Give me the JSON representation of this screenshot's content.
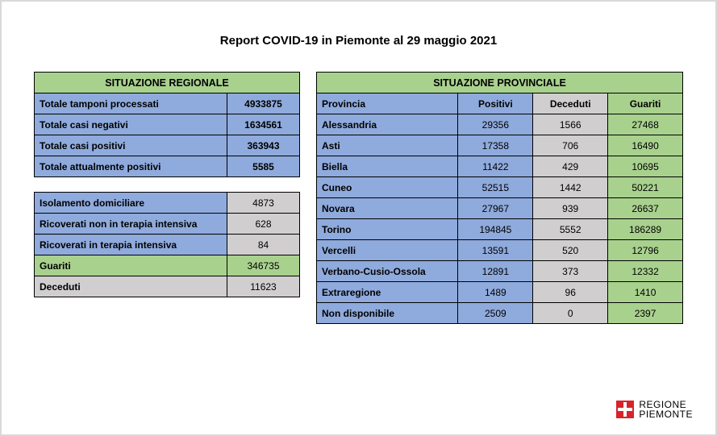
{
  "title": "Report COVID-19 in Piemonte al 29 maggio 2021",
  "regionale": {
    "header": "SITUAZIONE REGIONALE",
    "rows": [
      {
        "label": "Totale tamponi processati",
        "value": "4933875"
      },
      {
        "label": "Totale casi negativi",
        "value": "1634561"
      },
      {
        "label": "Totale casi positivi",
        "value": "363943"
      },
      {
        "label": "Totale attualmente positivi",
        "value": "5585"
      }
    ],
    "breakdown": [
      {
        "label": "Isolamento domiciliare",
        "value": "4873",
        "label_bg": "blue",
        "val_bg": "gray"
      },
      {
        "label": "Ricoverati non in terapia intensiva",
        "value": "628",
        "label_bg": "blue",
        "val_bg": "gray"
      },
      {
        "label": "Ricoverati in terapia intensiva",
        "value": "84",
        "label_bg": "blue",
        "val_bg": "gray"
      },
      {
        "label": "Guariti",
        "value": "346735",
        "label_bg": "green",
        "val_bg": "green"
      },
      {
        "label": "Deceduti",
        "value": "11623",
        "label_bg": "gray",
        "val_bg": "gray"
      }
    ]
  },
  "provinciale": {
    "header": "SITUAZIONE PROVINCIALE",
    "columns": [
      "Provincia",
      "Positivi",
      "Deceduti",
      "Guariti"
    ],
    "rows": [
      {
        "prov": "Alessandria",
        "pos": "29356",
        "dec": "1566",
        "gua": "27468"
      },
      {
        "prov": "Asti",
        "pos": "17358",
        "dec": "706",
        "gua": "16490"
      },
      {
        "prov": "Biella",
        "pos": "11422",
        "dec": "429",
        "gua": "10695"
      },
      {
        "prov": "Cuneo",
        "pos": "52515",
        "dec": "1442",
        "gua": "50221"
      },
      {
        "prov": "Novara",
        "pos": "27967",
        "dec": "939",
        "gua": "26637"
      },
      {
        "prov": "Torino",
        "pos": "194845",
        "dec": "5552",
        "gua": "186289"
      },
      {
        "prov": "Vercelli",
        "pos": "13591",
        "dec": "520",
        "gua": "12796"
      },
      {
        "prov": "Verbano-Cusio-Ossola",
        "pos": "12891",
        "dec": "373",
        "gua": "12332"
      },
      {
        "prov": "Extraregione",
        "pos": "1489",
        "dec": "96",
        "gua": "1410"
      },
      {
        "prov": "Non disponibile",
        "pos": "2509",
        "dec": "0",
        "gua": "2397"
      }
    ]
  },
  "logo": {
    "line1": "REGIONE",
    "line2": "PIEMONTE"
  },
  "colors": {
    "green": "#a9d18e",
    "blue": "#8faadc",
    "gray": "#d0cece",
    "border": "#000000",
    "pageBorder": "#d9d9d9",
    "red": "#d8232a"
  }
}
